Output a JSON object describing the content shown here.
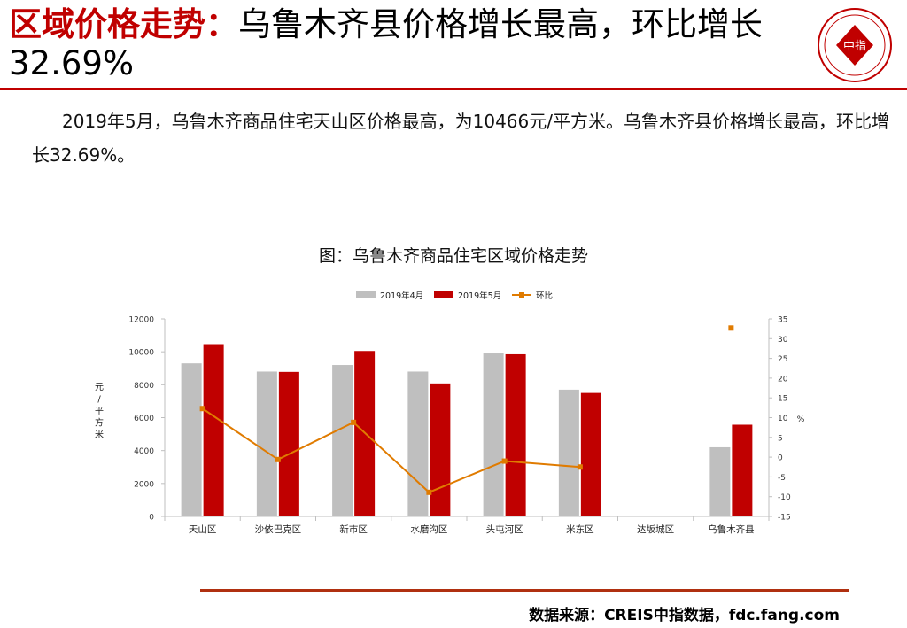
{
  "header": {
    "title_red": "区域价格走势：",
    "title_black": "乌鲁木齐县价格增长最高，环比增长32.69%",
    "logo_text": "中指"
  },
  "summary": "2019年5月，乌鲁木齐商品住宅天山区价格最高，为10466元/平方米。乌鲁木齐县价格增长最高，环比增长32.69%。",
  "source": "数据来源：CREIS中指数据，fdc.fang.com",
  "colors": {
    "accent": "#c00000",
    "series_apr": "#bfbfbf",
    "series_may": "#c00000",
    "series_mom": "#e07b00"
  },
  "chart_data": {
    "type": "bar",
    "title": "图：乌鲁木齐商品住宅区域价格走势",
    "categories": [
      "天山区",
      "沙依巴克区",
      "新市区",
      "水磨沟区",
      "头屯河区",
      "米东区",
      "达坂城区",
      "乌鲁木齐县"
    ],
    "series": [
      {
        "name": "2019年4月",
        "type": "bar",
        "axis": "left",
        "values": [
          9300,
          8800,
          9200,
          8800,
          9900,
          7700,
          null,
          4200
        ]
      },
      {
        "name": "2019年5月",
        "type": "bar",
        "axis": "left",
        "values": [
          10466,
          8780,
          10050,
          8080,
          9850,
          7500,
          null,
          5570
        ]
      },
      {
        "name": "环比",
        "type": "line",
        "axis": "right",
        "values": [
          12.3,
          -0.6,
          8.8,
          -8.9,
          -1.0,
          -2.5,
          null,
          32.69
        ]
      }
    ],
    "ylabel": "元/平方米",
    "y2label": "%",
    "ylim": [
      0,
      12000
    ],
    "yticks": [
      0,
      2000,
      4000,
      6000,
      8000,
      10000,
      12000
    ],
    "y2lim": [
      -15,
      35
    ],
    "y2ticks": [
      -15,
      -10,
      -5,
      0,
      5,
      10,
      15,
      20,
      25,
      30,
      35
    ],
    "legend": "top"
  }
}
